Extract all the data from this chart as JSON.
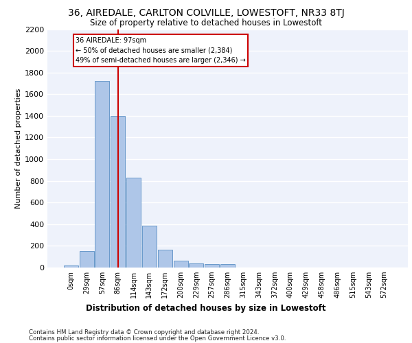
{
  "title_line1": "36, AIREDALE, CARLTON COLVILLE, LOWESTOFT, NR33 8TJ",
  "title_line2": "Size of property relative to detached houses in Lowestoft",
  "xlabel": "Distribution of detached houses by size in Lowestoft",
  "ylabel": "Number of detached properties",
  "bin_labels": [
    "0sqm",
    "29sqm",
    "57sqm",
    "86sqm",
    "114sqm",
    "143sqm",
    "172sqm",
    "200sqm",
    "229sqm",
    "257sqm",
    "286sqm",
    "315sqm",
    "343sqm",
    "372sqm",
    "400sqm",
    "429sqm",
    "458sqm",
    "486sqm",
    "515sqm",
    "543sqm",
    "572sqm"
  ],
  "bar_values": [
    20,
    155,
    1720,
    1400,
    830,
    385,
    165,
    65,
    40,
    30,
    30,
    0,
    0,
    0,
    0,
    0,
    0,
    0,
    0,
    0,
    0
  ],
  "bar_color": "#aec6e8",
  "bar_edge_color": "#5a8fc4",
  "background_color": "#eef2fb",
  "grid_color": "#ffffff",
  "vline_x": 3,
  "vline_color": "#cc0000",
  "annotation_line1": "36 AIREDALE: 97sqm",
  "annotation_line2": "← 50% of detached houses are smaller (2,384)",
  "annotation_line3": "49% of semi-detached houses are larger (2,346) →",
  "annotation_box_color": "#cc0000",
  "ylim": [
    0,
    2200
  ],
  "yticks": [
    0,
    200,
    400,
    600,
    800,
    1000,
    1200,
    1400,
    1600,
    1800,
    2000,
    2200
  ],
  "footer_line1": "Contains HM Land Registry data © Crown copyright and database right 2024.",
  "footer_line2": "Contains public sector information licensed under the Open Government Licence v3.0."
}
